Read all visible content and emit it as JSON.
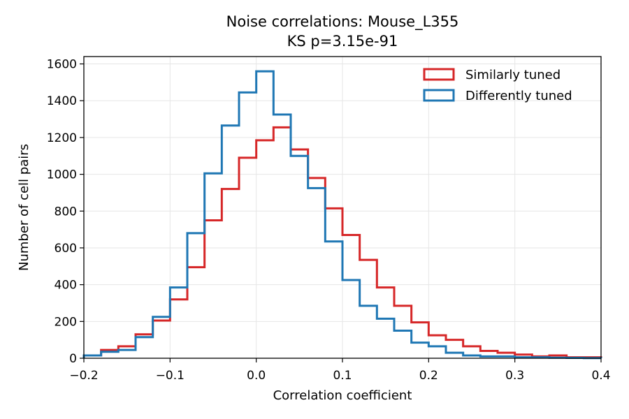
{
  "chart_data": {
    "type": "histogram",
    "title": "Noise correlations: Mouse_L355",
    "subtitle": "KS p=3.15e-91",
    "xlabel": "Correlation coefficient",
    "ylabel": "Number of cell pairs",
    "xlim": [
      -0.2,
      0.4
    ],
    "ylim": [
      0,
      1640
    ],
    "xticks": [
      -0.2,
      -0.1,
      0.0,
      0.1,
      0.2,
      0.3,
      0.4
    ],
    "xtick_labels": [
      "−0.2",
      "−0.1",
      "0.0",
      "0.1",
      "0.2",
      "0.3",
      "0.4"
    ],
    "yticks": [
      0,
      200,
      400,
      600,
      800,
      1000,
      1200,
      1400,
      1600
    ],
    "ytick_labels": [
      "0",
      "200",
      "400",
      "600",
      "800",
      "1000",
      "1200",
      "1400",
      "1600"
    ],
    "grid": true,
    "legend_position": "top-right",
    "bin_edges": [
      -0.2,
      -0.18,
      -0.16,
      -0.14,
      -0.12,
      -0.1,
      -0.08,
      -0.06,
      -0.04,
      -0.02,
      0.0,
      0.02,
      0.04,
      0.06,
      0.08,
      0.1,
      0.12,
      0.14,
      0.16,
      0.18,
      0.2,
      0.22,
      0.24,
      0.26,
      0.28,
      0.3,
      0.32,
      0.34,
      0.36,
      0.38,
      0.4
    ],
    "series": [
      {
        "name": "Similarly tuned",
        "color": "#d62728",
        "counts": [
          15,
          45,
          65,
          130,
          205,
          320,
          495,
          750,
          920,
          1090,
          1185,
          1255,
          1135,
          980,
          815,
          670,
          535,
          385,
          285,
          195,
          125,
          100,
          65,
          40,
          30,
          20,
          10,
          15,
          5,
          5
        ]
      },
      {
        "name": "Differently tuned",
        "color": "#1f77b4",
        "counts": [
          15,
          35,
          45,
          115,
          225,
          385,
          680,
          1005,
          1265,
          1445,
          1560,
          1325,
          1100,
          925,
          635,
          425,
          285,
          215,
          150,
          85,
          65,
          30,
          15,
          10,
          10,
          5,
          5,
          3,
          2,
          1
        ]
      }
    ]
  }
}
